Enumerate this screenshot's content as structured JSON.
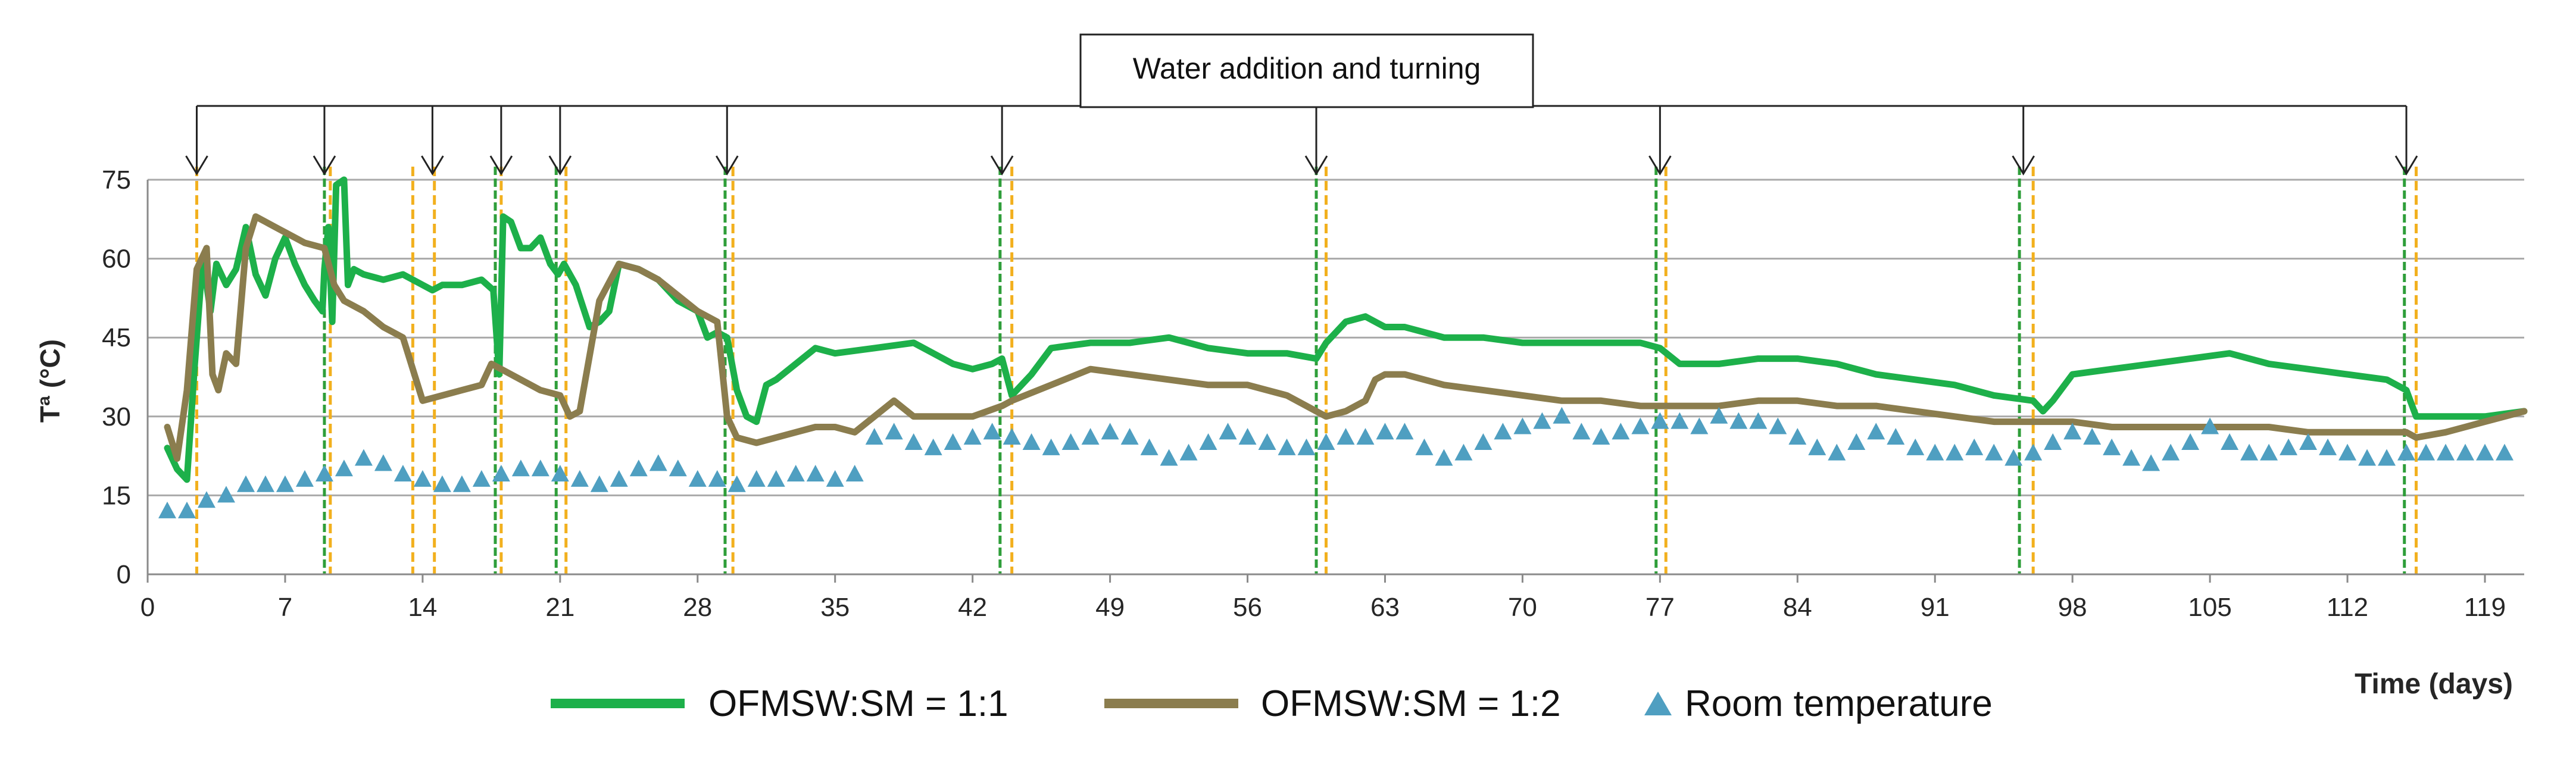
{
  "chart_data": {
    "type": "line",
    "title": "",
    "xlabel": "Time (days)",
    "ylabel": "Tª (°C)",
    "xlim": [
      0,
      121
    ],
    "ylim": [
      0,
      75
    ],
    "xticks": [
      0,
      7,
      14,
      21,
      28,
      35,
      42,
      49,
      56,
      63,
      70,
      77,
      84,
      91,
      98,
      105,
      112,
      119
    ],
    "yticks": [
      0,
      15,
      30,
      45,
      60,
      75
    ],
    "grid": true,
    "colors": {
      "ofmsw_1_1": "#1db04a",
      "ofmsw_1_2": "#8b7d4e",
      "room": "#4f9fc1",
      "marker_yellow": "#f2b01e",
      "marker_green": "#2f9e3a"
    },
    "annotation": {
      "text": "Water addition and turning",
      "days": [
        2.5,
        9,
        14.5,
        18,
        21,
        29.5,
        43.5,
        59.5,
        77,
        95.5,
        115
      ]
    },
    "marker_lines": {
      "yellow": [
        2.5,
        9.3,
        13.5,
        14.6,
        18,
        21.3,
        29.8,
        44,
        60,
        77.3,
        96,
        115.5
      ],
      "green": [
        9,
        17.7,
        20.8,
        29.4,
        43.4,
        59.5,
        76.8,
        95.3,
        114.9
      ]
    },
    "series": [
      {
        "name": "OFMSW:SM = 1:1",
        "x": [
          1,
          1.5,
          2,
          2.4,
          2.8,
          3.2,
          3.5,
          4,
          4.5,
          5,
          5.5,
          6,
          6.5,
          7,
          7.5,
          8,
          8.5,
          8.9,
          9,
          9.2,
          9.4,
          9.6,
          10,
          10.2,
          10.5,
          11,
          12,
          13,
          14,
          14.5,
          15,
          16,
          17,
          17.6,
          17.9,
          18.1,
          18.5,
          19,
          19.5,
          20,
          20.5,
          20.9,
          21.2,
          21.8,
          22.5,
          23,
          23.5,
          24,
          25,
          26,
          27,
          28,
          28.5,
          29,
          29.5,
          30,
          30.5,
          31,
          31.5,
          32,
          33,
          34,
          35,
          37,
          39,
          40,
          41,
          42,
          43,
          43.5,
          44,
          45,
          46,
          48,
          50,
          52,
          53,
          54,
          56,
          58,
          59.5,
          60,
          61,
          62,
          62.5,
          63,
          64,
          66,
          68,
          70,
          72,
          74,
          76,
          77,
          78,
          80,
          82,
          84,
          86,
          88,
          90,
          92,
          94,
          96,
          96.5,
          97,
          98,
          100,
          102,
          104,
          106,
          108,
          110,
          112,
          114,
          115,
          115.5,
          117,
          119,
          121
        ],
        "y": [
          24,
          20,
          18,
          40,
          60,
          50,
          59,
          55,
          58,
          66,
          57,
          53,
          60,
          64,
          59,
          55,
          52,
          50,
          58,
          66,
          48,
          74,
          75,
          55,
          58,
          57,
          56,
          57,
          55,
          54,
          55,
          55,
          56,
          54,
          38,
          68,
          67,
          62,
          62,
          64,
          59,
          57,
          59,
          55,
          47,
          48,
          50,
          59,
          58,
          56,
          52,
          50,
          45,
          46,
          45,
          35,
          30,
          29,
          36,
          37,
          40,
          43,
          42,
          43,
          44,
          42,
          40,
          39,
          40,
          41,
          34,
          38,
          43,
          44,
          44,
          45,
          44,
          43,
          42,
          42,
          41,
          44,
          48,
          49,
          48,
          47,
          47,
          45,
          45,
          44,
          44,
          44,
          44,
          43,
          40,
          40,
          41,
          41,
          40,
          38,
          37,
          36,
          34,
          33,
          31,
          33,
          38,
          39,
          40,
          41,
          42,
          40,
          39,
          38,
          37,
          35,
          30,
          30,
          30,
          31
        ]
      },
      {
        "name": "OFMSW:SM = 1:2",
        "x": [
          1,
          1.5,
          2,
          2.5,
          3,
          3.3,
          3.6,
          4,
          4.5,
          5,
          5.5,
          6,
          6.5,
          7,
          8,
          9,
          9.5,
          10,
          11,
          12,
          13,
          14,
          15,
          16,
          17,
          17.5,
          18,
          19,
          20,
          21,
          21.5,
          22,
          23,
          24,
          25,
          26,
          27,
          28,
          29,
          29.5,
          30,
          31,
          32,
          33,
          34,
          35,
          36,
          37,
          38,
          39,
          40,
          42,
          43.5,
          44,
          46,
          48,
          50,
          52,
          54,
          56,
          58,
          59.5,
          60,
          61,
          62,
          62.5,
          63,
          64,
          66,
          68,
          70,
          72,
          74,
          76,
          77,
          78,
          80,
          82,
          84,
          86,
          88,
          90,
          92,
          94,
          96,
          98,
          100,
          102,
          104,
          106,
          108,
          110,
          112,
          114,
          115,
          115.5,
          117,
          119,
          121
        ],
        "y": [
          28,
          22,
          35,
          58,
          62,
          38,
          35,
          42,
          40,
          62,
          68,
          67,
          66,
          65,
          63,
          62,
          55,
          52,
          50,
          47,
          45,
          33,
          34,
          35,
          36,
          40,
          39,
          37,
          35,
          34,
          30,
          31,
          52,
          59,
          58,
          56,
          53,
          50,
          48,
          30,
          26,
          25,
          26,
          27,
          28,
          28,
          27,
          30,
          33,
          30,
          30,
          30,
          32,
          33,
          36,
          39,
          38,
          37,
          36,
          36,
          34,
          31,
          30,
          31,
          33,
          37,
          38,
          38,
          36,
          35,
          34,
          33,
          33,
          32,
          32,
          32,
          32,
          33,
          33,
          32,
          32,
          31,
          30,
          29,
          29,
          29,
          28,
          28,
          28,
          28,
          28,
          27,
          27,
          27,
          27,
          26,
          27,
          29,
          31
        ]
      },
      {
        "name": "Room temperature",
        "x": [
          1,
          2,
          3,
          4,
          5,
          6,
          7,
          8,
          9,
          10,
          11,
          12,
          13,
          14,
          15,
          16,
          17,
          18,
          19,
          20,
          21,
          22,
          23,
          24,
          25,
          26,
          27,
          28,
          29,
          30,
          31,
          32,
          33,
          34,
          35,
          36,
          37,
          38,
          39,
          40,
          41,
          42,
          43,
          44,
          45,
          46,
          47,
          48,
          49,
          50,
          51,
          52,
          53,
          54,
          55,
          56,
          57,
          58,
          59,
          60,
          61,
          62,
          63,
          64,
          65,
          66,
          67,
          68,
          69,
          70,
          71,
          72,
          73,
          74,
          75,
          76,
          77,
          78,
          79,
          80,
          81,
          82,
          83,
          84,
          85,
          86,
          87,
          88,
          89,
          90,
          91,
          92,
          93,
          94,
          95,
          96,
          97,
          98,
          99,
          100,
          101,
          102,
          103,
          104,
          105,
          106,
          107,
          108,
          109,
          110,
          111,
          112,
          113,
          114,
          115,
          116,
          117,
          118,
          119,
          120
        ],
        "y": [
          12,
          12,
          14,
          15,
          17,
          17,
          17,
          18,
          19,
          20,
          22,
          21,
          19,
          18,
          17,
          17,
          18,
          19,
          20,
          20,
          19,
          18,
          17,
          18,
          20,
          21,
          20,
          18,
          18,
          17,
          18,
          18,
          19,
          19,
          18,
          19,
          26,
          27,
          25,
          24,
          25,
          26,
          27,
          26,
          25,
          24,
          25,
          26,
          27,
          26,
          24,
          22,
          23,
          25,
          27,
          26,
          25,
          24,
          24,
          25,
          26,
          26,
          27,
          27,
          24,
          22,
          23,
          25,
          27,
          28,
          29,
          30,
          27,
          26,
          27,
          28,
          29,
          29,
          28,
          30,
          29,
          29,
          28,
          26,
          24,
          23,
          25,
          27,
          26,
          24,
          23,
          23,
          24,
          23,
          22,
          23,
          25,
          27,
          26,
          24,
          22,
          21,
          23,
          25,
          28,
          25,
          23,
          23,
          24,
          25,
          24,
          23,
          22,
          22,
          23,
          23,
          23,
          23,
          23,
          23
        ]
      }
    ]
  }
}
